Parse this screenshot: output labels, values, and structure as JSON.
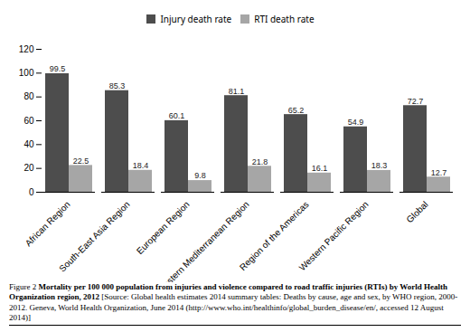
{
  "chart_data": {
    "type": "bar",
    "categories": [
      "African Region",
      "South-East Asia Region",
      "European Region",
      "Eastern Mediterranean Region",
      "Region of the Americas",
      "Western Pacific Region",
      "Global"
    ],
    "series": [
      {
        "name": "Injury death rate",
        "color": "#4d4d4d",
        "values": [
          99.5,
          85.3,
          60.1,
          81.1,
          65.2,
          54.9,
          72.7
        ]
      },
      {
        "name": "RTI death rate",
        "color": "#a6a6a6",
        "values": [
          22.5,
          18.4,
          9.8,
          21.8,
          16.1,
          18.3,
          12.7
        ]
      }
    ],
    "ylim": [
      0,
      120
    ],
    "yticks": [
      0,
      20,
      40,
      60,
      80,
      100,
      120
    ],
    "grid": false,
    "legend": "top",
    "data_labels": true,
    "annotations": [
      "Figure 2",
      "Mortality per 100 000 population from injuries and violence compared to road traffic injuries (RTIs) by World Health Organization region, 2012",
      "[Source: Global health estimates 2014 summary tables: Deaths by cause, age and sex, by WHO region, 2000-2012. Geneva, World Health Organization, June 2014 (http://www.who.int/healthinfo/global_burden_disease/en/, accessed 12 August 2014)]"
    ]
  }
}
